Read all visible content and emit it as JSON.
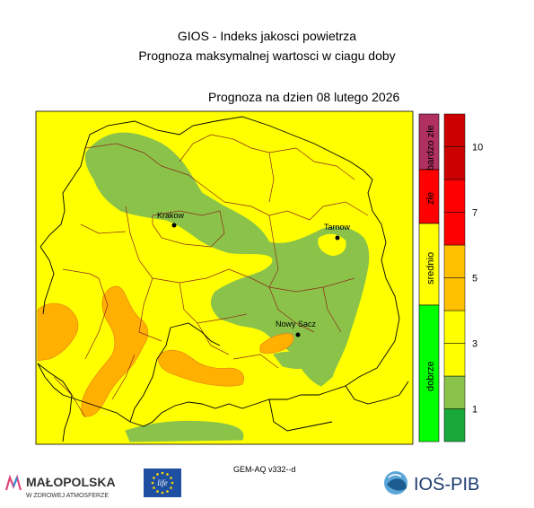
{
  "header": {
    "title_line1": "GIOS - Indeks jakosci powietrza",
    "title_line2": "Prognoza maksymalnej wartosci w ciagu doby",
    "forecast_date": "Prognoza na dzien  08 lutego 2026"
  },
  "cities": [
    {
      "name": "Krakow"
    },
    {
      "name": "Tarnow"
    },
    {
      "name": "Nowy Sacz"
    }
  ],
  "legend_categories": [
    {
      "label": "bardzo złe",
      "color": "#b03060"
    },
    {
      "label": "złe",
      "color": "#ff0000"
    },
    {
      "label": "srednio",
      "color": "#ffff00"
    },
    {
      "label": "dobrze",
      "color": "#00ff00"
    }
  ],
  "colorbar": {
    "colors": [
      "#1aa83a",
      "#8bc34a",
      "#ffff00",
      "#ffff00",
      "#ffc000",
      "#ffc000",
      "#ff0000",
      "#ff0000",
      "#cc0000",
      "#cc0000"
    ],
    "ticks": [
      "1",
      "3",
      "5",
      "7",
      "10"
    ]
  },
  "footer": {
    "model_version": "GEM-AQ v332--d",
    "left_logo_text": "MAŁOPOLSKA",
    "left_logo_subtext": "W ZDROWEJ ATMOSFERZE",
    "eu_text": "life",
    "right_logo_text": "IOŚ-PIB"
  },
  "colors": {
    "yellow": "#ffff00",
    "green": "#8bc34a",
    "orange": "#ffb000",
    "border_brown": "#8b2a1a"
  }
}
